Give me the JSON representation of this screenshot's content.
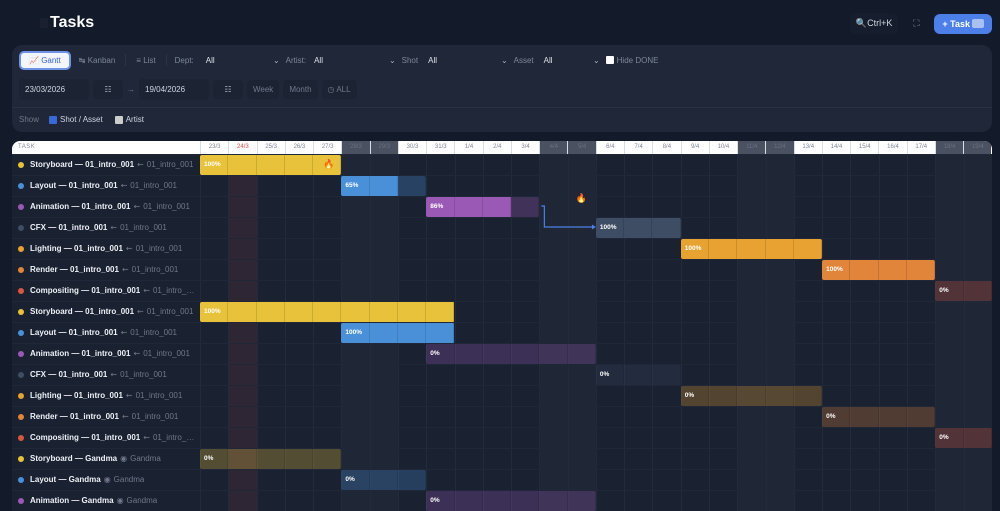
{
  "header": {
    "title": "Tasks",
    "search_shortcut": "Ctrl+K",
    "add_task_label": "+ Task"
  },
  "views": {
    "gantt": "Gantt",
    "kanban": "Kanban",
    "list": "List"
  },
  "filters": {
    "dept": {
      "label": "Dept:",
      "value": "All"
    },
    "artist": {
      "label": "Artist:",
      "value": "All"
    },
    "shot": {
      "label": "Shot",
      "value": "All"
    },
    "asset": {
      "label": "Asset",
      "value": "All"
    },
    "hide_done": {
      "label": "Hide DONE",
      "checked": false
    }
  },
  "range": {
    "start": "23/03/2026",
    "end": "19/04/2026",
    "week": "Week",
    "month": "Month",
    "all": "ALL"
  },
  "show": {
    "label": "Show",
    "shot_asset": {
      "label": "Shot / Asset",
      "checked": true
    },
    "artist": {
      "label": "Artist",
      "checked": false
    }
  },
  "gantt": {
    "task_header": "TASK",
    "today": "24/3",
    "days": [
      "23/3",
      "24/3",
      "25/3",
      "26/3",
      "27/3",
      "28/3",
      "29/3",
      "30/3",
      "31/3",
      "1/4",
      "2/4",
      "3/4",
      "4/4",
      "5/4",
      "6/4",
      "7/4",
      "8/4",
      "9/4",
      "10/4",
      "11/4",
      "12/4",
      "13/4",
      "14/4",
      "15/4",
      "16/4",
      "17/4",
      "18/4",
      "19/4"
    ],
    "weekends": [
      "28/3",
      "29/3",
      "4/4",
      "5/4",
      "11/4",
      "12/4",
      "18/4",
      "19/4"
    ],
    "dept_colors": {
      "Storyboard": "#e8c23a",
      "Layout": "#4a90d9",
      "Animation": "#9b59b6",
      "CFX": "#3e4d63",
      "Lighting": "#e8a232",
      "Render": "#e0853a",
      "Compositing": "#d9573f"
    },
    "tasks": [
      {
        "dept": "Storyboard",
        "name": "Storyboard — 01_intro_001",
        "ref": "01_intro_001",
        "ref_icon": "shot-icon",
        "start": "23/3",
        "end": "27/3",
        "progress": 100,
        "hot": true
      },
      {
        "dept": "Layout",
        "name": "Layout — 01_intro_001",
        "ref": "01_intro_001",
        "ref_icon": "shot-icon",
        "start": "28/3",
        "end": "30/3",
        "progress": 65
      },
      {
        "dept": "Animation",
        "name": "Animation — 01_intro_001",
        "ref": "01_intro_001",
        "ref_icon": "shot-icon",
        "start": "31/3",
        "end": "3/4",
        "progress": 86,
        "hot_after": true
      },
      {
        "dept": "CFX",
        "name": "CFX — 01_intro_001",
        "ref": "01_intro_001",
        "ref_icon": "shot-icon",
        "start": "6/4",
        "end": "8/4",
        "progress": 100,
        "dependency_from_previous": true
      },
      {
        "dept": "Lighting",
        "name": "Lighting — 01_intro_001",
        "ref": "01_intro_001",
        "ref_icon": "shot-icon",
        "start": "9/4",
        "end": "13/4",
        "progress": 100
      },
      {
        "dept": "Render",
        "name": "Render — 01_intro_001",
        "ref": "01_intro_001",
        "ref_icon": "shot-icon",
        "start": "14/4",
        "end": "17/4",
        "progress": 100
      },
      {
        "dept": "Compositing",
        "name": "Compositing — 01_intro_001",
        "ref": "01_intro_…",
        "ref_icon": "shot-icon",
        "start": "18/4",
        "end": "19/4",
        "progress": 0
      },
      {
        "dept": "Storyboard",
        "name": "Storyboard — 01_intro_001",
        "ref": "01_intro_001",
        "ref_icon": "shot-icon",
        "start": "23/3",
        "end": "31/3",
        "progress": 100
      },
      {
        "dept": "Layout",
        "name": "Layout — 01_intro_001",
        "ref": "01_intro_001",
        "ref_icon": "shot-icon",
        "start": "28/3",
        "end": "31/3",
        "progress": 100
      },
      {
        "dept": "Animation",
        "name": "Animation — 01_intro_001",
        "ref": "01_intro_001",
        "ref_icon": "shot-icon",
        "start": "31/3",
        "end": "5/4",
        "progress": 0
      },
      {
        "dept": "CFX",
        "name": "CFX — 01_intro_001",
        "ref": "01_intro_001",
        "ref_icon": "shot-icon",
        "start": "6/4",
        "end": "8/4",
        "progress": 0
      },
      {
        "dept": "Lighting",
        "name": "Lighting — 01_intro_001",
        "ref": "01_intro_001",
        "ref_icon": "shot-icon",
        "start": "9/4",
        "end": "13/4",
        "progress": 0
      },
      {
        "dept": "Render",
        "name": "Render — 01_intro_001",
        "ref": "01_intro_001",
        "ref_icon": "shot-icon",
        "start": "14/4",
        "end": "17/4",
        "progress": 0
      },
      {
        "dept": "Compositing",
        "name": "Compositing — 01_intro_001",
        "ref": "01_intro_…",
        "ref_icon": "shot-icon",
        "start": "18/4",
        "end": "19/4",
        "progress": 0
      },
      {
        "dept": "Storyboard",
        "name": "Storyboard — Gandma",
        "ref": "Gandma",
        "ref_icon": "asset-icon",
        "start": "23/3",
        "end": "27/3",
        "progress": 0
      },
      {
        "dept": "Layout",
        "name": "Layout — Gandma",
        "ref": "Gandma",
        "ref_icon": "asset-icon",
        "start": "28/3",
        "end": "30/3",
        "progress": 0
      },
      {
        "dept": "Animation",
        "name": "Animation — Gandma",
        "ref": "Gandma",
        "ref_icon": "asset-icon",
        "start": "31/3",
        "end": "5/4",
        "progress": 0
      }
    ]
  }
}
